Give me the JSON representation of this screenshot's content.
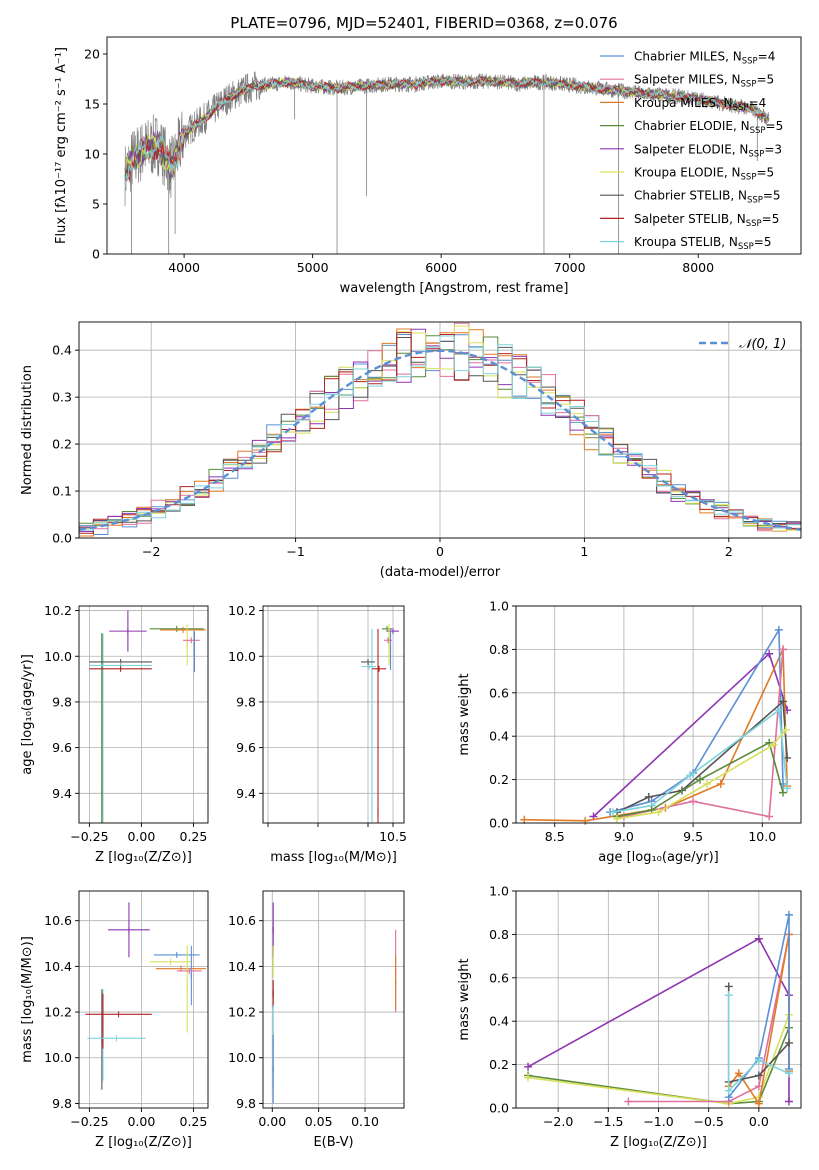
{
  "chart_data": [
    {
      "id": "spectrum",
      "type": "line",
      "title": "PLATE=0796, MJD=52401, FIBERID=0368, z=0.076",
      "xlabel": "wavelength [Angstrom, rest frame]",
      "ylabel": "Flux [fλ10⁻¹⁷ erg cm⁻² s⁻¹ A⁻¹]",
      "xlim": [
        3400,
        8800
      ],
      "ylim": [
        0,
        21.7
      ],
      "xticks": [
        4000,
        5000,
        6000,
        7000,
        8000
      ],
      "yticks": [
        0,
        5,
        10,
        15,
        20
      ],
      "legend_position": "right",
      "series": [
        {
          "name": "Chabrier MILES, N",
          "sub": "SSP",
          "tail": "=4",
          "color": "#5b8fd6"
        },
        {
          "name": "Salpeter MILES, N",
          "sub": "SSP",
          "tail": "=5",
          "color": "#e0709e"
        },
        {
          "name": "Kroupa MILES, N",
          "sub": "SSP",
          "tail": "=4",
          "color": "#e17a24"
        },
        {
          "name": "Chabrier ELODIE, N",
          "sub": "SSP",
          "tail": "=5",
          "color": "#5a8a3a"
        },
        {
          "name": "Salpeter ELODIE, N",
          "sub": "SSP",
          "tail": "=3",
          "color": "#8e35b0"
        },
        {
          "name": "Kroupa ELODIE, N",
          "sub": "SSP",
          "tail": "=5",
          "color": "#d8e05a"
        },
        {
          "name": "Chabrier STELIB, N",
          "sub": "SSP",
          "tail": "=5",
          "color": "#555555"
        },
        {
          "name": "Salpeter STELIB, N",
          "sub": "SSP",
          "tail": "=5",
          "color": "#b22222"
        },
        {
          "name": "Kroupa STELIB, N",
          "sub": "SSP",
          "tail": "=5",
          "color": "#7fd3da"
        }
      ],
      "observed": {
        "color": "#808080",
        "x": [
          3540,
          3600,
          3700,
          3800,
          3900,
          4000,
          4100,
          4200,
          4300,
          4400,
          4500,
          4600,
          4700,
          4800,
          4900,
          5000,
          5200,
          5400,
          5600,
          5800,
          6000,
          6200,
          6400,
          6600,
          6800,
          7000,
          7200,
          7400,
          7600,
          7800,
          8000,
          8200,
          8400,
          8550
        ],
        "y": [
          8.0,
          9.5,
          10.5,
          11.0,
          8.5,
          12.0,
          13.0,
          14.0,
          15.2,
          16.0,
          16.6,
          16.9,
          17.0,
          17.2,
          17.0,
          16.8,
          16.6,
          16.8,
          17.0,
          17.0,
          17.3,
          17.2,
          17.3,
          17.0,
          17.2,
          16.9,
          16.6,
          16.3,
          16.0,
          15.8,
          15.5,
          15.0,
          14.6,
          13.5
        ]
      }
    },
    {
      "id": "residuals",
      "type": "histogram",
      "xlabel": "(data-model)/error",
      "ylabel": "Normed distribution",
      "xlim": [
        -2.5,
        2.5
      ],
      "ylim": [
        0,
        0.46
      ],
      "xticks": [
        -2,
        -1,
        0,
        1,
        2
      ],
      "yticks": [
        0.0,
        0.1,
        0.2,
        0.3,
        0.4
      ],
      "grid": true,
      "legend": "𝒩(0, 1)",
      "legend_position": "top-right",
      "curve_color": "#5b8fd6",
      "bin_edges_start": -2.5,
      "bin_width": 0.1,
      "bins": 50
    },
    {
      "id": "age_vs_Z",
      "type": "errorbar",
      "xlabel": "Z [log₁₀(Z/Z⊙)]",
      "ylabel": "age  [log₁₀(age/yr)]",
      "xlim": [
        -0.3,
        0.32
      ],
      "ylim": [
        9.27,
        10.22
      ],
      "xticks": [
        -0.25,
        0.0,
        0.25
      ],
      "xticklabels": [
        "−0.25",
        "0.00",
        "0.25"
      ],
      "yticks": [
        9.4,
        9.6,
        9.8,
        10.0,
        10.2
      ],
      "grid": true,
      "points": [
        {
          "x": -0.185,
          "y": 9.38,
          "xerr": 0.0,
          "yerr": 0.72,
          "color": "#7fd3da"
        },
        {
          "x": -0.19,
          "y": 9.4,
          "xerr": 0.0,
          "yerr": 0.7,
          "color": "#555555"
        },
        {
          "x": -0.19,
          "y": 9.65,
          "xerr": 0.0,
          "yerr": 0.45,
          "color": "#5a8a3a"
        },
        {
          "x": -0.1,
          "y": 9.975,
          "xerr": 0.15,
          "yerr": 0.0,
          "color": "#555555"
        },
        {
          "x": -0.1,
          "y": 9.96,
          "xerr": 0.15,
          "yerr": 0.0,
          "color": "#7fd3da"
        },
        {
          "x": -0.1,
          "y": 9.945,
          "xerr": 0.15,
          "yerr": 0.0,
          "color": "#b22222"
        },
        {
          "x": -0.065,
          "y": 10.11,
          "xerr": 0.09,
          "yerr": 0.09,
          "color": "#8e35b0"
        },
        {
          "x": 0.17,
          "y": 10.12,
          "xerr": 0.13,
          "yerr": 0.0,
          "color": "#5a8a3a"
        },
        {
          "x": 0.2,
          "y": 10.115,
          "xerr": 0.11,
          "yerr": 0.0,
          "color": "#e17a24"
        },
        {
          "x": 0.22,
          "y": 10.05,
          "xerr": 0.0,
          "yerr": 0.09,
          "color": "#d8e05a"
        },
        {
          "x": 0.24,
          "y": 10.07,
          "xerr": 0.04,
          "yerr": 0.0,
          "color": "#e0709e"
        },
        {
          "x": 0.255,
          "y": 10.02,
          "xerr": 0.0,
          "yerr": 0.09,
          "color": "#5b8fd6"
        }
      ]
    },
    {
      "id": "age_vs_mass",
      "type": "errorbar",
      "xlabel": "mass [log₁₀(M/M⊙)]",
      "ylabel": "",
      "xlim": [
        7.9,
        10.72
      ],
      "ylim": [
        9.27,
        10.22
      ],
      "xticks": [
        8.0,
        9.0,
        10.0
      ],
      "xticklabels": [
        "",
        "",
        ""
      ],
      "xticks_labeled": [
        10.5
      ],
      "xticklabels_labeled": [
        "10.5"
      ],
      "yticks": [
        9.4,
        9.6,
        9.8,
        10.0,
        10.2
      ],
      "grid": true,
      "points": [
        {
          "x": 10.08,
          "y": 9.36,
          "xerr": 0.0,
          "yerr": 0.76,
          "color": "#7fd3da"
        },
        {
          "x": 10.2,
          "y": 9.32,
          "xerr": 0.0,
          "yerr": 0.8,
          "color": "#b22222"
        },
        {
          "x": 10.0,
          "y": 9.975,
          "xerr": 0.14,
          "yerr": 0.0,
          "color": "#555555"
        },
        {
          "x": 10.02,
          "y": 9.955,
          "xerr": 0.14,
          "yerr": 0.0,
          "color": "#7fd3da"
        },
        {
          "x": 10.22,
          "y": 9.945,
          "xerr": 0.14,
          "yerr": 0.0,
          "color": "#b22222"
        },
        {
          "x": 10.5,
          "y": 10.11,
          "xerr": 0.12,
          "yerr": 0.0,
          "color": "#8e35b0"
        },
        {
          "x": 10.38,
          "y": 10.12,
          "xerr": 0.1,
          "yerr": 0.0,
          "color": "#5a8a3a"
        },
        {
          "x": 10.42,
          "y": 10.05,
          "xerr": 0.0,
          "yerr": 0.09,
          "color": "#d8e05a"
        },
        {
          "x": 10.4,
          "y": 10.07,
          "xerr": 0.08,
          "yerr": 0.0,
          "color": "#e0709e"
        },
        {
          "x": 10.45,
          "y": 10.03,
          "xerr": 0.0,
          "yerr": 0.09,
          "color": "#5b8fd6"
        }
      ]
    },
    {
      "id": "weight_vs_age",
      "type": "line",
      "xlabel": "age  [log₁₀(age/yr)]",
      "ylabel": "mass weight",
      "xlim": [
        8.22,
        10.28
      ],
      "ylim": [
        0,
        1.0
      ],
      "xticks": [
        8.5,
        9.0,
        9.5,
        10.0
      ],
      "yticks": [
        0.0,
        0.2,
        0.4,
        0.6,
        0.8,
        1.0
      ],
      "grid": true,
      "series": [
        {
          "name": "Salpeter ELODIE",
          "color": "#8e35b0",
          "x": [
            8.78,
            10.05,
            10.18
          ],
          "y": [
            0.03,
            0.78,
            0.52
          ]
        },
        {
          "name": "Kroupa MILES",
          "color": "#e17a24",
          "x": [
            8.28,
            8.72,
            9.3,
            9.7,
            10.15,
            10.18
          ],
          "y": [
            0.015,
            0.01,
            0.07,
            0.18,
            0.8,
            0.17
          ]
        },
        {
          "name": "Chabrier MILES",
          "color": "#5b8fd6",
          "x": [
            8.9,
            9.2,
            9.5,
            10.12,
            10.15
          ],
          "y": [
            0.05,
            0.1,
            0.23,
            0.89,
            0.18
          ]
        },
        {
          "name": "Salpeter MILES",
          "color": "#e0709e",
          "x": [
            9.0,
            9.5,
            10.05,
            10.15
          ],
          "y": [
            0.03,
            0.1,
            0.03,
            0.8
          ]
        },
        {
          "name": "Chabrier STELIB",
          "color": "#555555",
          "x": [
            8.95,
            9.18,
            9.42,
            10.15,
            10.18
          ],
          "y": [
            0.05,
            0.12,
            0.15,
            0.56,
            0.3
          ]
        },
        {
          "name": "Kroupa STELIB",
          "color": "#7fd3da",
          "x": [
            8.92,
            9.2,
            9.48,
            10.12,
            10.18
          ],
          "y": [
            0.05,
            0.08,
            0.22,
            0.52,
            0.16
          ]
        },
        {
          "name": "Chabrier ELODIE",
          "color": "#5a8a3a",
          "x": [
            8.95,
            9.2,
            9.55,
            10.05,
            10.15
          ],
          "y": [
            0.03,
            0.06,
            0.2,
            0.37,
            0.14
          ]
        },
        {
          "name": "Kroupa ELODIE",
          "color": "#d8e05a",
          "x": [
            8.95,
            9.25,
            9.6,
            10.08,
            10.17
          ],
          "y": [
            0.02,
            0.05,
            0.18,
            0.36,
            0.43
          ]
        }
      ]
    },
    {
      "id": "mass_vs_Z",
      "type": "errorbar",
      "xlabel": "Z [log₁₀(Z/Z⊙)]",
      "ylabel": "mass [log₁₀(M/M⊙)]",
      "xlim": [
        -0.3,
        0.32
      ],
      "ylim": [
        9.78,
        10.73
      ],
      "xticks": [
        -0.25,
        0.0,
        0.25
      ],
      "xticklabels": [
        "−0.25",
        "0.00",
        "0.25"
      ],
      "yticks": [
        9.8,
        10.0,
        10.2,
        10.4,
        10.6
      ],
      "grid": true,
      "points": [
        {
          "x": -0.19,
          "y": 10.08,
          "xerr": 0.0,
          "yerr": 0.22,
          "color": "#555555"
        },
        {
          "x": -0.185,
          "y": 10.1,
          "xerr": 0.0,
          "yerr": 0.2,
          "color": "#7fd3da"
        },
        {
          "x": -0.185,
          "y": 10.16,
          "xerr": 0.0,
          "yerr": 0.12,
          "color": "#b22222"
        },
        {
          "x": -0.11,
          "y": 10.19,
          "xerr": 0.16,
          "yerr": 0.0,
          "color": "#b22222"
        },
        {
          "x": -0.12,
          "y": 10.085,
          "xerr": 0.14,
          "yerr": 0.0,
          "color": "#7fd3da"
        },
        {
          "x": -0.06,
          "y": 10.56,
          "xerr": 0.1,
          "yerr": 0.12,
          "color": "#8e35b0"
        },
        {
          "x": 0.14,
          "y": 10.42,
          "xerr": 0.1,
          "yerr": 0.0,
          "color": "#d8e05a"
        },
        {
          "x": 0.17,
          "y": 10.45,
          "xerr": 0.11,
          "yerr": 0.0,
          "color": "#5b8fd6"
        },
        {
          "x": 0.19,
          "y": 10.39,
          "xerr": 0.12,
          "yerr": 0.0,
          "color": "#e17a24"
        },
        {
          "x": 0.22,
          "y": 10.3,
          "xerr": 0.0,
          "yerr": 0.19,
          "color": "#d8e05a"
        },
        {
          "x": 0.24,
          "y": 10.36,
          "xerr": 0.0,
          "yerr": 0.13,
          "color": "#5b8fd6"
        },
        {
          "x": 0.23,
          "y": 10.38,
          "xerr": 0.06,
          "yerr": 0.0,
          "color": "#e0709e"
        }
      ]
    },
    {
      "id": "mass_vs_ebv",
      "type": "errorbar",
      "xlabel": "E(B-V)",
      "ylabel": "",
      "xlim": [
        -0.01,
        0.142
      ],
      "ylim": [
        9.78,
        10.73
      ],
      "xticks": [
        0.0,
        0.05,
        0.1
      ],
      "xticklabels": [
        "0.00",
        "0.05",
        "0.10"
      ],
      "yticks": [
        9.8,
        10.0,
        10.2,
        10.4,
        10.6
      ],
      "grid": true,
      "points": [
        {
          "x": 0.001,
          "y": 10.56,
          "xerr": 0.0,
          "yerr": 0.12,
          "color": "#8e35b0"
        },
        {
          "x": 0.001,
          "y": 10.42,
          "xerr": 0.0,
          "yerr": 0.07,
          "color": "#d8e05a"
        },
        {
          "x": 0.001,
          "y": 10.28,
          "xerr": 0.0,
          "yerr": 0.06,
          "color": "#b22222"
        },
        {
          "x": 0.001,
          "y": 10.05,
          "xerr": 0.0,
          "yerr": 0.18,
          "color": "#7fd3da"
        },
        {
          "x": 0.001,
          "y": 9.95,
          "xerr": 0.0,
          "yerr": 0.15,
          "color": "#5b8fd6"
        },
        {
          "x": 0.133,
          "y": 10.38,
          "xerr": 0.0,
          "yerr": 0.18,
          "color": "#e0709e"
        },
        {
          "x": 0.133,
          "y": 10.33,
          "xerr": 0.0,
          "yerr": 0.12,
          "color": "#e17a24"
        }
      ]
    },
    {
      "id": "weight_vs_Z",
      "type": "line",
      "xlabel": "Z [log₁₀(Z/Z⊙)]",
      "ylabel": "mass weight",
      "xlim": [
        -2.42,
        0.42
      ],
      "ylim": [
        0,
        1.0
      ],
      "xticks": [
        -2.0,
        -1.5,
        -1.0,
        -0.5,
        0.0
      ],
      "xticklabels": [
        "−2.0",
        "−1.5",
        "−1.0",
        "−0.5",
        "0.0"
      ],
      "yticks": [
        0.0,
        0.2,
        0.4,
        0.6,
        0.8,
        1.0
      ],
      "grid": true,
      "series": [
        {
          "name": "Salpeter ELODIE",
          "color": "#8e35b0",
          "x": [
            -2.3,
            0.0,
            0.3,
            0.3
          ],
          "y": [
            0.19,
            0.78,
            0.52,
            0.03
          ]
        },
        {
          "name": "Chabrier ELODIE",
          "color": "#5a8a3a",
          "x": [
            -2.3,
            -0.3,
            0.0,
            0.3
          ],
          "y": [
            0.15,
            0.02,
            0.03,
            0.37
          ]
        },
        {
          "name": "Kroupa ELODIE",
          "color": "#d8e05a",
          "x": [
            -2.3,
            -0.3,
            0.0,
            0.3
          ],
          "y": [
            0.14,
            0.02,
            0.05,
            0.43
          ]
        },
        {
          "name": "Salpeter MILES",
          "color": "#e0709e",
          "x": [
            -1.3,
            -0.3,
            0.0,
            0.3
          ],
          "y": [
            0.03,
            0.03,
            0.1,
            0.8
          ]
        },
        {
          "name": "Kroupa MILES",
          "color": "#e17a24",
          "x": [
            -0.3,
            -0.2,
            0.0,
            0.3,
            0.3
          ],
          "y": [
            0.1,
            0.16,
            0.02,
            0.8,
            0.17
          ]
        },
        {
          "name": "Chabrier MILES",
          "color": "#5b8fd6",
          "x": [
            -0.3,
            0.0,
            0.3,
            0.3
          ],
          "y": [
            0.05,
            0.23,
            0.89,
            0.18
          ]
        },
        {
          "name": "Chabrier STELIB",
          "color": "#555555",
          "x": [
            -0.3,
            -0.3,
            0.0,
            0.3
          ],
          "y": [
            0.56,
            0.12,
            0.15,
            0.3
          ]
        },
        {
          "name": "Kroupa STELIB",
          "color": "#7fd3da",
          "x": [
            -0.3,
            -0.3,
            0.0,
            0.3
          ],
          "y": [
            0.52,
            0.08,
            0.22,
            0.16
          ]
        }
      ]
    }
  ]
}
